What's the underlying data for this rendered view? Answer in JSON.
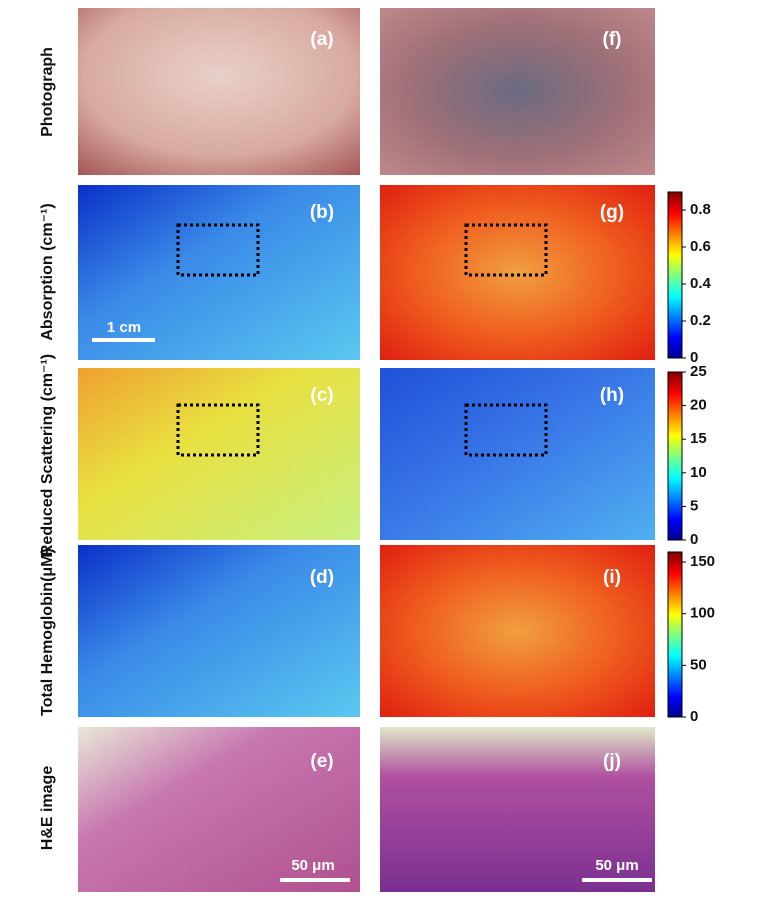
{
  "row_labels": [
    "Photograph",
    "Absorption (cm⁻¹)",
    "Reduced Scattering (cm⁻¹)",
    "Total Hemoglobin(μM)",
    "H&E image"
  ],
  "panels": [
    "(a)",
    "(b)",
    "(c)",
    "(d)",
    "(e)",
    "(f)",
    "(g)",
    "(h)",
    "(i)",
    "(j)"
  ],
  "scale_bars": [
    "1 cm",
    "50 μm",
    "50 μm"
  ],
  "colorbars": [
    {
      "ticks": [
        0,
        0.2,
        0.4,
        0.6,
        0.8
      ]
    },
    {
      "ticks": [
        0,
        5,
        10,
        15,
        20,
        25
      ]
    },
    {
      "ticks": [
        0,
        50,
        100,
        150
      ]
    }
  ]
}
